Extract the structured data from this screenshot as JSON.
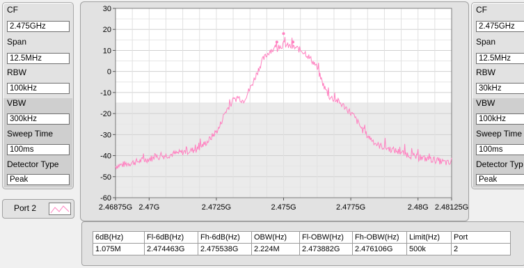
{
  "left_panel": {
    "cf_label": "CF",
    "cf_value": "2.475GHz",
    "span_label": "Span",
    "span_value": "12.5MHz",
    "rbw_label": "RBW",
    "rbw_value": "100kHz",
    "vbw_label": "VBW",
    "vbw_value": "300kHz",
    "sweep_label": "Sweep Time",
    "sweep_value": "100ms",
    "detector_label": "Detector Type",
    "detector_value": "Peak"
  },
  "right_panel": {
    "cf_label": "CF",
    "cf_value": "2.475GHz",
    "span_label": "Span",
    "span_value": "12.5MHz",
    "rbw_label": "RBW",
    "rbw_value": "30kHz",
    "vbw_label": "VBW",
    "vbw_value": "100kHz",
    "sweep_label": "Sweep Time",
    "sweep_value": "100ms",
    "detector_label": "Detector Typ",
    "detector_value": "Peak"
  },
  "port_legend": {
    "label": "Port 2"
  },
  "chart_data": {
    "type": "line",
    "x_tick_labels": [
      "2.46875G",
      "2.47G",
      "2.4725G",
      "2.475G",
      "2.4775G",
      "2.48G",
      "2.48125G"
    ],
    "x_ticks": [
      2.46875,
      2.47,
      2.4725,
      2.475,
      2.4775,
      2.48,
      2.48125
    ],
    "xlim": [
      2.46875,
      2.48125
    ],
    "y_ticks": [
      30,
      20,
      10,
      0,
      -10,
      -20,
      -30,
      -40,
      -50,
      -60
    ],
    "ylim": [
      -60,
      30
    ],
    "grid": true,
    "series": [
      {
        "color": "#ff80c0",
        "x": [
          2.46875,
          2.4695,
          2.4702,
          2.471,
          2.4718,
          2.4722,
          2.4726,
          2.4728,
          2.473,
          2.4733,
          2.4735,
          2.4738,
          2.4742,
          2.4745,
          2.4748,
          2.475,
          2.4752,
          2.4755,
          2.4758,
          2.4762,
          2.4765,
          2.4767,
          2.477,
          2.4773,
          2.4776,
          2.478,
          2.4785,
          2.479,
          2.4795,
          2.48,
          2.4806,
          2.48125
        ],
        "y": [
          -45,
          -43,
          -41,
          -39,
          -37,
          -33,
          -27,
          -20,
          -16,
          -12,
          -14,
          -7,
          5,
          10,
          11,
          13,
          12,
          11,
          9,
          3,
          -7,
          -12,
          -14,
          -17,
          -21,
          -29,
          -35,
          -37,
          -39,
          -41,
          -42,
          -44
        ]
      }
    ]
  },
  "results_table": {
    "headers": [
      "6dB(Hz)",
      "Fl-6dB(Hz)",
      "Fh-6dB(Hz)",
      "OBW(Hz)",
      "Fl-OBW(Hz)",
      "Fh-OBW(Hz)",
      "Limit(Hz)",
      "Port"
    ],
    "row": [
      "1.075M",
      "2.474463G",
      "2.475538G",
      "2.224M",
      "2.473882G",
      "2.476106G",
      "500k",
      "2"
    ]
  }
}
